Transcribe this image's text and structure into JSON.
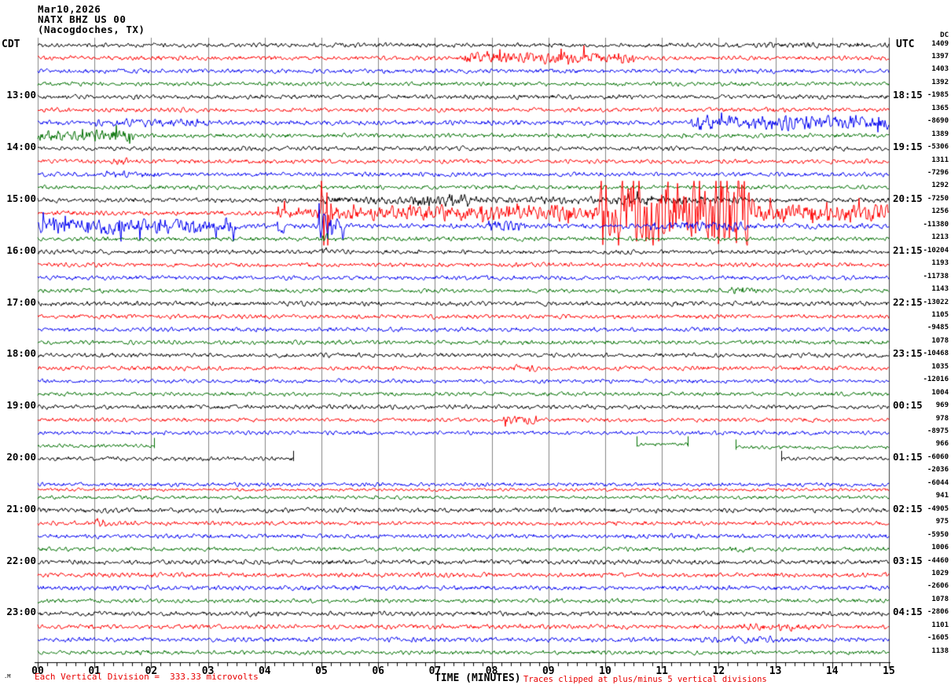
{
  "header": {
    "date": "Mar10,2026",
    "station": "NATX BHZ US 00",
    "location": "(Nacogdoches, TX)"
  },
  "timezones": {
    "left": "CDT",
    "right": "UTC"
  },
  "footer": {
    "scale_note": "Each Vertical Division =  333.33 microvolts",
    "axis_title": "TIME (MINUTES)",
    "clip_note": "Traces clipped at plus/minus 5 vertical divisions",
    "watermark": ".M"
  },
  "chart_data": {
    "type": "line",
    "subtype": "helicorder-seismogram",
    "title": "Mar10,2026 NATX BHZ US 00 (Nacogdoches, TX)",
    "xlabel": "TIME (MINUTES)",
    "x_ticks": [
      "00",
      "01",
      "02",
      "03",
      "04",
      "05",
      "06",
      "07",
      "08",
      "09",
      "10",
      "11",
      "12",
      "13",
      "14",
      "15"
    ],
    "x_range_minutes": [
      0,
      15
    ],
    "minutes_per_row": 15,
    "minor_ticks_per_minute": 6,
    "rows_per_hour": 4,
    "left_time_zone": "CDT",
    "right_time_zone": "UTC",
    "dc_header": "DC",
    "scale": "Each Vertical Division = 333.33 microvolts",
    "clipping": "Traces clipped at plus/minus 5 vertical divisions",
    "clip_divisions": 5,
    "colors": {
      "black": "#000000",
      "red": "#fe0000",
      "blue": "#0000f0",
      "green": "#007000",
      "grid": "#848484"
    },
    "rows": [
      {
        "color": "black",
        "value": "1409",
        "amp": 2.3,
        "events": [
          [
            12.8,
            14.6,
            3.2,
            0
          ]
        ]
      },
      {
        "color": "red",
        "value": "1397",
        "amp": 2.3,
        "events": [
          [
            7.5,
            10.5,
            6.5,
            1
          ]
        ]
      },
      {
        "color": "blue",
        "value": "1403",
        "amp": 2.3,
        "events": []
      },
      {
        "color": "green",
        "value": "1392",
        "amp": 2.2,
        "events": []
      },
      {
        "color": "black",
        "hour_label": "13:00",
        "utc_label": "18:15",
        "value": "-1985",
        "amp": 2.3,
        "events": []
      },
      {
        "color": "red",
        "value": "1365",
        "amp": 2.3,
        "events": [
          [
            12.8,
            13.2,
            3.5,
            0
          ]
        ]
      },
      {
        "color": "blue",
        "value": "-8690",
        "amp": 2.5,
        "events": [
          [
            1.0,
            3.0,
            4.5,
            0
          ],
          [
            11.5,
            15,
            8,
            1
          ]
        ]
      },
      {
        "color": "green",
        "value": "1389",
        "amp": 2.3,
        "events": [
          [
            0,
            1.7,
            6,
            1
          ]
        ]
      },
      {
        "color": "black",
        "hour_label": "14:00",
        "utc_label": "19:15",
        "value": "-5306",
        "amp": 2.3,
        "events": []
      },
      {
        "color": "red",
        "value": "1311",
        "amp": 2.3,
        "events": [
          [
            1.3,
            1.6,
            4,
            0
          ]
        ]
      },
      {
        "color": "blue",
        "value": "-7296",
        "amp": 2.3,
        "events": [
          [
            1.2,
            2.2,
            3.5,
            0
          ]
        ]
      },
      {
        "color": "green",
        "value": "1292",
        "amp": 2.2,
        "events": []
      },
      {
        "color": "black",
        "hour_label": "15:00",
        "utc_label": "20:15",
        "value": "-7250",
        "amp": 2.5,
        "events": [
          [
            5,
            12.5,
            4,
            0
          ],
          [
            6.6,
            7.6,
            7,
            1
          ],
          [
            10.2,
            11.0,
            5,
            1
          ]
        ]
      },
      {
        "color": "red",
        "value": "1256",
        "amp": 2.5,
        "events": [
          [
            4.2,
            5.0,
            6,
            1
          ],
          [
            5.0,
            5.2,
            40,
            1
          ],
          [
            5.2,
            9.9,
            8,
            1
          ],
          [
            9.9,
            12.6,
            40,
            1
          ],
          [
            12.6,
            15,
            10,
            1
          ]
        ]
      },
      {
        "color": "blue",
        "value": "-11380",
        "amp": 2.7,
        "events": [
          [
            0,
            3.5,
            8,
            1
          ],
          [
            4.2,
            4.35,
            10,
            1
          ],
          [
            4.95,
            5.4,
            16,
            1
          ],
          [
            7.9,
            8.6,
            6,
            0
          ],
          [
            10.8,
            12.5,
            5,
            0
          ]
        ]
      },
      {
        "color": "green",
        "value": "1213",
        "amp": 2.3,
        "events": [
          [
            4.98,
            5.15,
            6,
            0
          ]
        ]
      },
      {
        "color": "black",
        "hour_label": "16:00",
        "utc_label": "21:15",
        "value": "-10204",
        "amp": 2.3,
        "events": [
          [
            4.98,
            5.1,
            5,
            0
          ]
        ]
      },
      {
        "color": "red",
        "value": "1193",
        "amp": 2.3,
        "events": []
      },
      {
        "color": "blue",
        "value": "-11738",
        "amp": 2.3,
        "events": []
      },
      {
        "color": "green",
        "value": "1143",
        "amp": 2.2,
        "events": [
          [
            12.2,
            12.7,
            4.5,
            0
          ]
        ]
      },
      {
        "color": "black",
        "hour_label": "17:00",
        "utc_label": "22:15",
        "value": "-13022",
        "amp": 2.5,
        "events": []
      },
      {
        "color": "red",
        "value": "1105",
        "amp": 2.3,
        "events": []
      },
      {
        "color": "blue",
        "value": "-9485",
        "amp": 2.3,
        "events": []
      },
      {
        "color": "green",
        "value": "1078",
        "amp": 2.2,
        "events": []
      },
      {
        "color": "black",
        "hour_label": "18:00",
        "utc_label": "23:15",
        "value": "-10468",
        "amp": 2.3,
        "events": []
      },
      {
        "color": "red",
        "value": "1035",
        "amp": 2.3,
        "events": [
          [
            8.3,
            8.8,
            4,
            0
          ]
        ]
      },
      {
        "color": "blue",
        "value": "-12016",
        "amp": 2.1,
        "events": []
      },
      {
        "color": "green",
        "value": "1004",
        "amp": 2.1,
        "events": []
      },
      {
        "color": "black",
        "hour_label": "19:00",
        "utc_label": "00:15",
        "value": "969",
        "amp": 2.3,
        "events": []
      },
      {
        "color": "red",
        "value": "978",
        "amp": 2.1,
        "events": [
          [
            8.2,
            8.8,
            5,
            1
          ]
        ]
      },
      {
        "color": "blue",
        "value": "-8975",
        "amp": 2.1,
        "events": []
      },
      {
        "color": "green",
        "value": "966",
        "amp": 1.9,
        "events": [],
        "segments": [
          [
            0,
            2.05,
            0
          ],
          [
            10.55,
            11.45,
            -2
          ],
          [
            12.3,
            15,
            2
          ]
        ]
      },
      {
        "color": "black",
        "hour_label": "20:00",
        "utc_label": "01:15",
        "value": "-6060",
        "amp": 2.1,
        "events": [],
        "segments": [
          [
            0,
            4.5,
            0
          ],
          [
            13.1,
            15,
            0
          ]
        ]
      },
      {
        "color": "red",
        "value": "-2036",
        "amp": 1.7,
        "events": [],
        "segments": [
          [
            0,
            15,
            23
          ]
        ]
      },
      {
        "color": "blue",
        "value": "-6044",
        "amp": 2.1,
        "events": []
      },
      {
        "color": "green",
        "value": "941",
        "amp": 1.9,
        "events": []
      },
      {
        "color": "black",
        "hour_label": "21:00",
        "utc_label": "02:15",
        "value": "-4905",
        "amp": 2.5,
        "events": []
      },
      {
        "color": "red",
        "value": "975",
        "amp": 2.3,
        "events": [
          [
            1.0,
            1.3,
            5,
            0
          ]
        ]
      },
      {
        "color": "blue",
        "value": "-5950",
        "amp": 2.3,
        "events": []
      },
      {
        "color": "green",
        "value": "1006",
        "amp": 2.2,
        "events": [
          [
            12.2,
            12.6,
            3.5,
            0
          ]
        ]
      },
      {
        "color": "black",
        "hour_label": "22:00",
        "utc_label": "03:15",
        "value": "-4460",
        "amp": 2.5,
        "events": []
      },
      {
        "color": "red",
        "value": "1029",
        "amp": 2.5,
        "events": []
      },
      {
        "color": "blue",
        "value": "-2606",
        "amp": 2.5,
        "events": []
      },
      {
        "color": "green",
        "value": "1078",
        "amp": 2.2,
        "events": []
      },
      {
        "color": "black",
        "hour_label": "23:00",
        "utc_label": "04:15",
        "value": "-2806",
        "amp": 2.5,
        "events": []
      },
      {
        "color": "red",
        "value": "1101",
        "amp": 2.5,
        "events": [
          [
            12.4,
            13.6,
            4,
            0
          ]
        ]
      },
      {
        "color": "blue",
        "value": "-1605",
        "amp": 2.5,
        "events": [
          [
            11.5,
            13,
            3.5,
            0
          ]
        ]
      },
      {
        "color": "green",
        "value": "1138",
        "amp": 2.2,
        "events": []
      }
    ]
  }
}
